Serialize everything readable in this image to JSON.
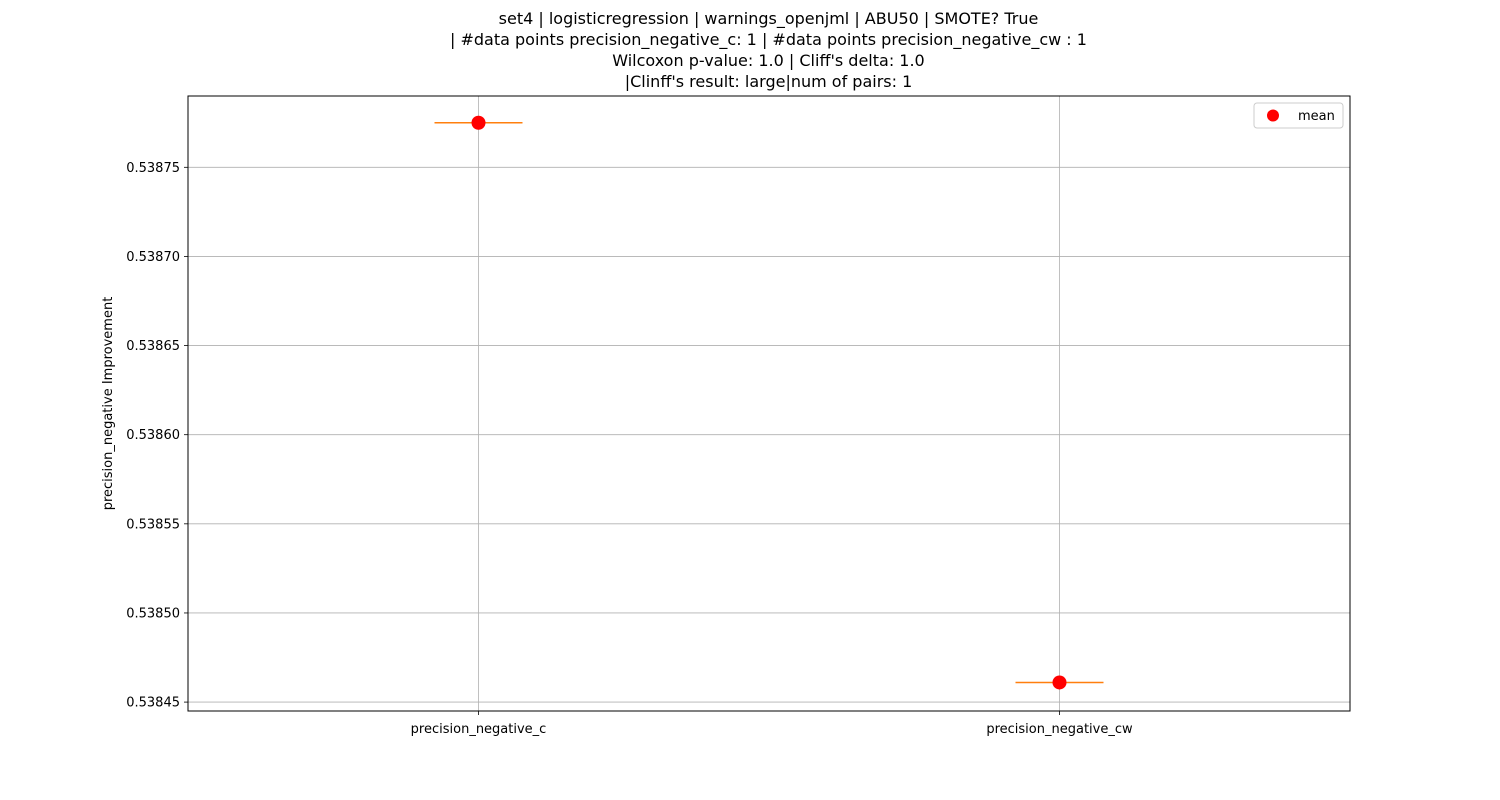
{
  "chart_data": {
    "type": "box",
    "title_lines": [
      "set4 | logisticregression | warnings_openjml | ABU50 | SMOTE? True",
      "| #data points precision_negative_c: 1 | #data points precision_negative_cw : 1",
      "Wilcoxon p-value: 1.0 | Cliff's delta: 1.0",
      "|Clinff's result: large|num of pairs: 1"
    ],
    "xlabel": "",
    "ylabel": "precision_negative Improvement",
    "categories": [
      "precision_negative_c",
      "precision_negative_cw"
    ],
    "values": [
      0.538775,
      0.538461
    ],
    "means": [
      0.538775,
      0.538461
    ],
    "ylim": [
      0.538445,
      0.53879
    ],
    "yticks": [
      0.53845,
      0.5385,
      0.53855,
      0.5386,
      0.53865,
      0.5387,
      0.53875
    ],
    "ytick_labels": [
      "0.53845",
      "0.53850",
      "0.53855",
      "0.53860",
      "0.53865",
      "0.53870",
      "0.53875"
    ],
    "grid": true,
    "legend": {
      "placement": "top-right",
      "entries": [
        {
          "label": "mean",
          "marker": "circle",
          "color": "#ff0000"
        }
      ]
    },
    "colors": {
      "median": "#ff7f0e",
      "box_edge": "#000000",
      "mean_marker": "#ff0000",
      "grid": "#b0b0b0"
    }
  }
}
